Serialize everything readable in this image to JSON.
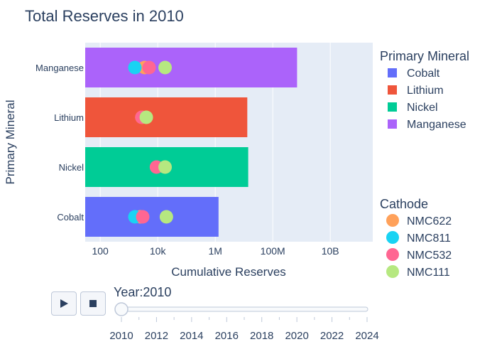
{
  "chart_data": {
    "type": "bar",
    "orientation": "horizontal",
    "title": "Total Reserves in 2010",
    "xlabel": "Cumulative Reserves",
    "ylabel": "Primary Mineral",
    "x_scale": "log",
    "xlim": [
      30,
      300000000000
    ],
    "x_ticks": [
      {
        "value": 100,
        "label": "100"
      },
      {
        "value": 10000,
        "label": "10k"
      },
      {
        "value": 1000000,
        "label": "1M"
      },
      {
        "value": 100000000,
        "label": "100M"
      },
      {
        "value": 10000000000,
        "label": "10B"
      }
    ],
    "categories": [
      "Cobalt",
      "Nickel",
      "Lithium",
      "Manganese"
    ],
    "bars": [
      {
        "category": "Cobalt",
        "value": 1300000,
        "color": "#636efa"
      },
      {
        "category": "Nickel",
        "value": 14000000,
        "color": "#00cc96"
      },
      {
        "category": "Lithium",
        "value": 13000000,
        "color": "#ef553b"
      },
      {
        "category": "Manganese",
        "value": 700000000,
        "color": "#ab63fa"
      }
    ],
    "bar_legend": {
      "title": "Primary Mineral",
      "items": [
        {
          "name": "Cobalt",
          "color": "#636efa"
        },
        {
          "name": "Lithium",
          "color": "#ef553b"
        },
        {
          "name": "Nickel",
          "color": "#00cc96"
        },
        {
          "name": "Manganese",
          "color": "#ab63fa"
        }
      ]
    },
    "scatter_series": [
      {
        "name": "NMC622",
        "color": "#ffa15a",
        "points": [
          {
            "category": "Cobalt",
            "x": 2500
          },
          {
            "category": "Lithium",
            "x": 2800
          },
          {
            "category": "Manganese",
            "x": 3500
          }
        ]
      },
      {
        "name": "NMC811",
        "color": "#19d3f3",
        "points": [
          {
            "category": "Cobalt",
            "x": 1600
          },
          {
            "category": "Manganese",
            "x": 1600
          }
        ]
      },
      {
        "name": "NMC532",
        "color": "#ff6692",
        "points": [
          {
            "category": "Cobalt",
            "x": 3000
          },
          {
            "category": "Nickel",
            "x": 9000
          },
          {
            "category": "Lithium",
            "x": 2800
          },
          {
            "category": "Manganese",
            "x": 5000
          }
        ]
      },
      {
        "name": "NMC111",
        "color": "#b6e880",
        "points": [
          {
            "category": "Cobalt",
            "x": 20000
          },
          {
            "category": "Nickel",
            "x": 18000
          },
          {
            "category": "Lithium",
            "x": 4000
          },
          {
            "category": "Manganese",
            "x": 18000
          }
        ]
      }
    ],
    "scatter_legend_title": "Cathode",
    "grid": true,
    "legend_position": "right"
  },
  "slider": {
    "prefix": "Year:",
    "current": "2010",
    "current_value": 2010,
    "range": [
      2010,
      2024
    ],
    "tick_labels": [
      "2010",
      "2012",
      "2014",
      "2016",
      "2018",
      "2020",
      "2022",
      "2024"
    ],
    "minor_step": 1
  },
  "controls": {
    "play_icon": "play-icon",
    "stop_icon": "stop-icon"
  },
  "colors": {
    "plot_background": "#e5ecf6",
    "grid": "#ffffff",
    "text": "#2a3f5f"
  }
}
